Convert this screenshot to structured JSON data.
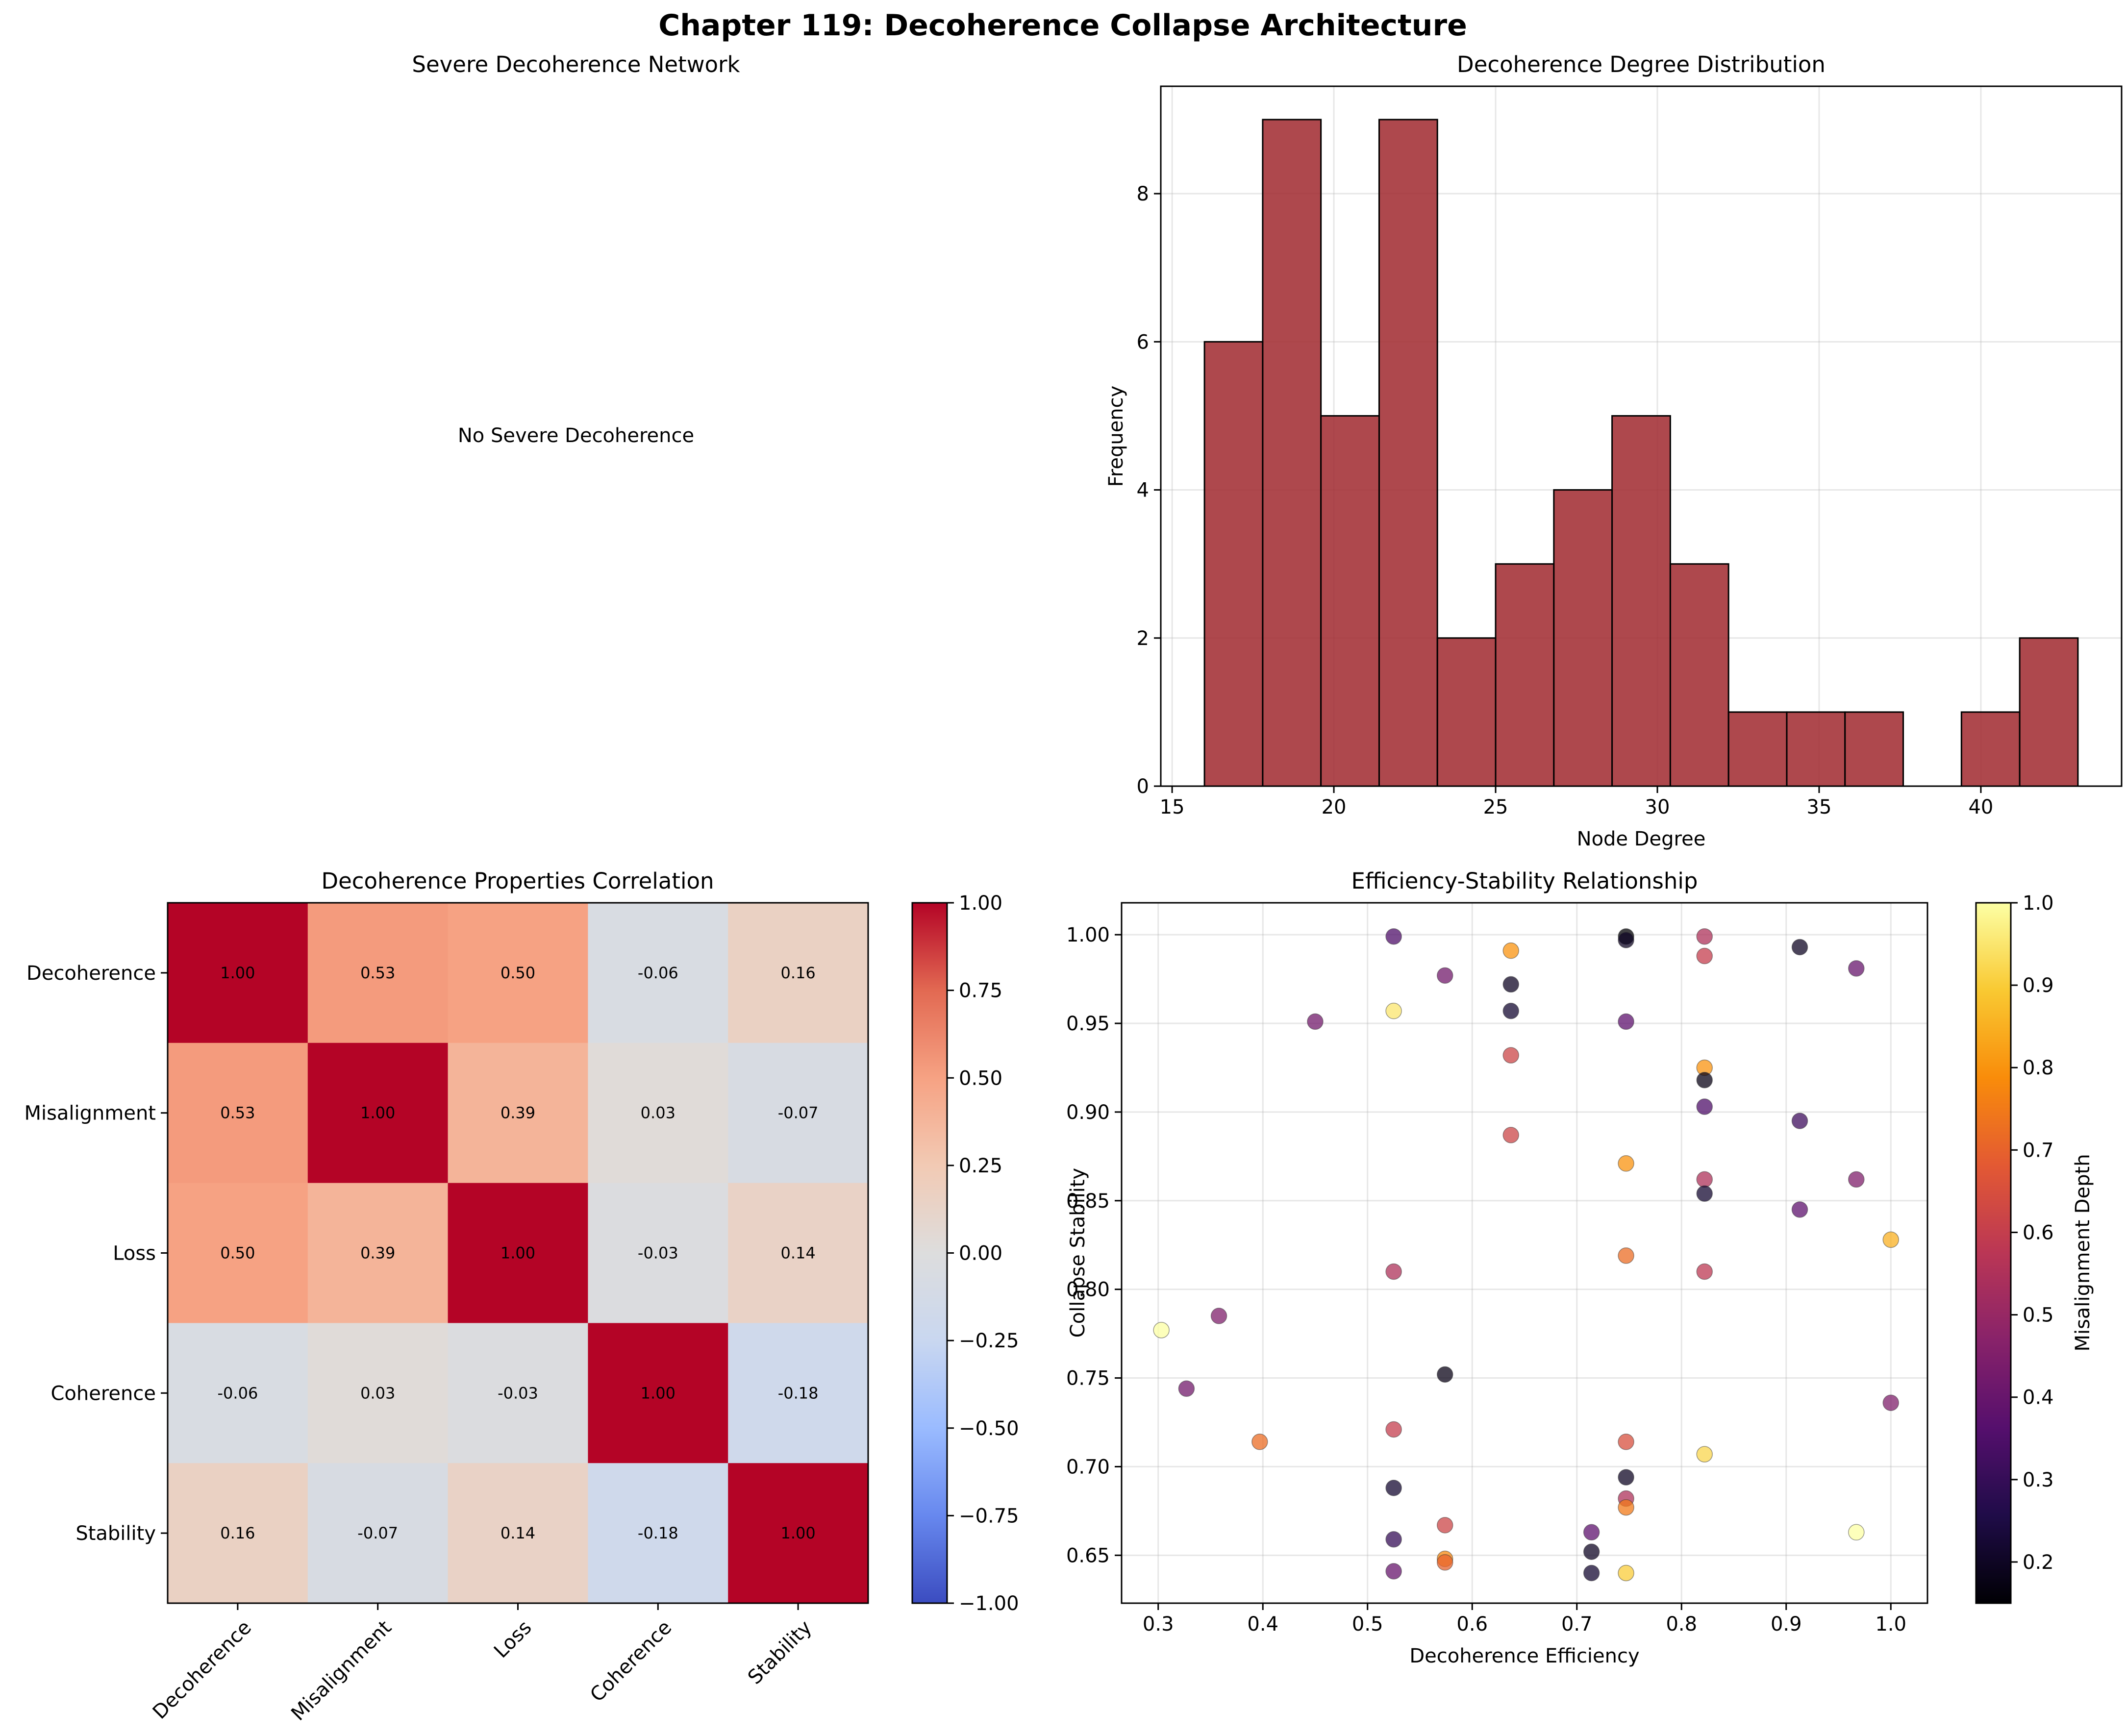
{
  "figure_title": "Chapter 119: Decoherence Collapse Architecture",
  "chart_data": [
    {
      "type": "empty",
      "title": "Severe Decoherence Network",
      "message": "No Severe Decoherence"
    },
    {
      "type": "bar",
      "subtype": "histogram",
      "title": "Decoherence Degree Distribution",
      "xlabel": "Node Degree",
      "ylabel": "Frequency",
      "bin_start": 16,
      "bin_width": 1.8,
      "values": [
        6,
        9,
        5,
        9,
        2,
        3,
        4,
        5,
        3,
        1,
        1,
        1,
        0,
        1,
        2
      ],
      "xlim": [
        14.65,
        44.35
      ],
      "ylim": [
        0,
        9.45
      ],
      "xticks": [
        15,
        20,
        25,
        30,
        35,
        40
      ],
      "yticks": [
        0,
        2,
        4,
        6,
        8
      ],
      "bar_color": "#a0282e",
      "grid": true
    },
    {
      "type": "heatmap",
      "title": "Decoherence Properties Correlation",
      "labels": [
        "Decoherence",
        "Misalignment",
        "Loss",
        "Coherence",
        "Stability"
      ],
      "matrix": [
        [
          1.0,
          0.53,
          0.5,
          -0.06,
          0.16
        ],
        [
          0.53,
          1.0,
          0.39,
          0.03,
          -0.07
        ],
        [
          0.5,
          0.39,
          1.0,
          -0.03,
          0.14
        ],
        [
          -0.06,
          0.03,
          -0.03,
          1.0,
          -0.18
        ],
        [
          0.16,
          -0.07,
          0.14,
          -0.18,
          1.0
        ]
      ],
      "colormap": "coolwarm",
      "vmin": -1,
      "vmax": 1,
      "colorbar_ticks": [
        "1.00",
        "0.75",
        "0.50",
        "0.25",
        "0.00",
        "−0.25",
        "−0.50",
        "−0.75",
        "−1.00"
      ]
    },
    {
      "type": "scatter",
      "title": "Efficiency-Stability Relationship",
      "xlabel": "Decoherence Efficiency",
      "ylabel": "Collapse Stability",
      "colorbar_label": "Misalignment Depth",
      "colormap": "inferno",
      "xlim": [
        0.265,
        1.035
      ],
      "ylim": [
        0.623,
        1.018
      ],
      "xticks": [
        "0.3",
        "0.4",
        "0.5",
        "0.6",
        "0.7",
        "0.8",
        "0.9",
        "1.0"
      ],
      "yticks": [
        "0.65",
        "0.70",
        "0.75",
        "0.80",
        "0.85",
        "0.90",
        "0.95",
        "1.00"
      ],
      "color_range": [
        0.15,
        1.0
      ],
      "colorbar_ticks": [
        "1.0",
        "0.9",
        "0.8",
        "0.7",
        "0.6",
        "0.5",
        "0.4",
        "0.3",
        "0.2"
      ],
      "points": [
        {
          "x": 0.525,
          "y": 0.999,
          "c": 0.35
        },
        {
          "x": 0.747,
          "y": 0.999,
          "c": 0.15
        },
        {
          "x": 0.747,
          "y": 0.997,
          "c": 0.2
        },
        {
          "x": 0.822,
          "y": 0.999,
          "c": 0.55
        },
        {
          "x": 0.913,
          "y": 0.993,
          "c": 0.2
        },
        {
          "x": 0.637,
          "y": 0.991,
          "c": 0.8
        },
        {
          "x": 0.822,
          "y": 0.988,
          "c": 0.6
        },
        {
          "x": 0.967,
          "y": 0.981,
          "c": 0.4
        },
        {
          "x": 0.574,
          "y": 0.977,
          "c": 0.42
        },
        {
          "x": 0.637,
          "y": 0.972,
          "c": 0.2
        },
        {
          "x": 0.525,
          "y": 0.957,
          "c": 0.95
        },
        {
          "x": 0.637,
          "y": 0.957,
          "c": 0.22
        },
        {
          "x": 0.45,
          "y": 0.951,
          "c": 0.42
        },
        {
          "x": 0.747,
          "y": 0.951,
          "c": 0.38
        },
        {
          "x": 0.637,
          "y": 0.932,
          "c": 0.62
        },
        {
          "x": 0.822,
          "y": 0.925,
          "c": 0.8
        },
        {
          "x": 0.822,
          "y": 0.918,
          "c": 0.18
        },
        {
          "x": 0.822,
          "y": 0.903,
          "c": 0.35
        },
        {
          "x": 0.913,
          "y": 0.895,
          "c": 0.32
        },
        {
          "x": 0.637,
          "y": 0.887,
          "c": 0.62
        },
        {
          "x": 0.747,
          "y": 0.871,
          "c": 0.8
        },
        {
          "x": 0.822,
          "y": 0.862,
          "c": 0.55
        },
        {
          "x": 0.967,
          "y": 0.862,
          "c": 0.45
        },
        {
          "x": 0.822,
          "y": 0.854,
          "c": 0.22
        },
        {
          "x": 0.913,
          "y": 0.845,
          "c": 0.38
        },
        {
          "x": 1.0,
          "y": 0.828,
          "c": 0.85
        },
        {
          "x": 0.747,
          "y": 0.819,
          "c": 0.72
        },
        {
          "x": 0.525,
          "y": 0.81,
          "c": 0.55
        },
        {
          "x": 0.822,
          "y": 0.81,
          "c": 0.58
        },
        {
          "x": 0.358,
          "y": 0.785,
          "c": 0.45
        },
        {
          "x": 0.303,
          "y": 0.777,
          "c": 1.0
        },
        {
          "x": 0.574,
          "y": 0.752,
          "c": 0.18
        },
        {
          "x": 0.327,
          "y": 0.744,
          "c": 0.42
        },
        {
          "x": 1.0,
          "y": 0.736,
          "c": 0.45
        },
        {
          "x": 0.525,
          "y": 0.721,
          "c": 0.6
        },
        {
          "x": 0.397,
          "y": 0.714,
          "c": 0.72
        },
        {
          "x": 0.747,
          "y": 0.714,
          "c": 0.65
        },
        {
          "x": 0.822,
          "y": 0.707,
          "c": 0.92
        },
        {
          "x": 0.747,
          "y": 0.694,
          "c": 0.2
        },
        {
          "x": 0.525,
          "y": 0.688,
          "c": 0.22
        },
        {
          "x": 0.747,
          "y": 0.682,
          "c": 0.55
        },
        {
          "x": 0.747,
          "y": 0.677,
          "c": 0.75
        },
        {
          "x": 0.574,
          "y": 0.667,
          "c": 0.62
        },
        {
          "x": 0.967,
          "y": 0.663,
          "c": 1.0
        },
        {
          "x": 0.714,
          "y": 0.663,
          "c": 0.38
        },
        {
          "x": 0.525,
          "y": 0.659,
          "c": 0.3
        },
        {
          "x": 0.714,
          "y": 0.652,
          "c": 0.2
        },
        {
          "x": 0.574,
          "y": 0.648,
          "c": 0.78
        },
        {
          "x": 0.574,
          "y": 0.646,
          "c": 0.7
        },
        {
          "x": 0.525,
          "y": 0.641,
          "c": 0.4
        },
        {
          "x": 0.714,
          "y": 0.64,
          "c": 0.22
        },
        {
          "x": 0.747,
          "y": 0.64,
          "c": 0.9
        }
      ]
    }
  ]
}
